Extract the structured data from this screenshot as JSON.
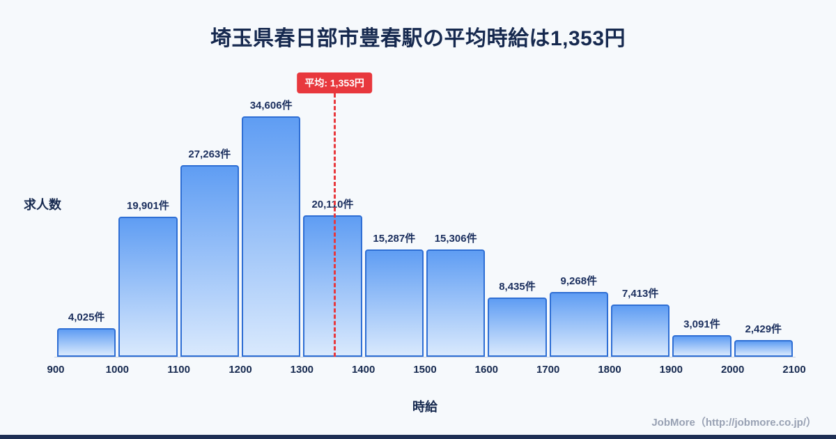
{
  "title": "埼玉県春日部市豊春駅の平均時給は1,353円",
  "chart_data": {
    "type": "bar",
    "title": "埼玉県春日部市豊春駅の平均時給は1,353円",
    "xlabel": "時給",
    "ylabel": "求人数",
    "unit_suffix": "件",
    "xlim": [
      900,
      2100
    ],
    "x_ticks": [
      900,
      1000,
      1100,
      1200,
      1300,
      1400,
      1500,
      1600,
      1700,
      1800,
      1900,
      2000,
      2100
    ],
    "grid": false,
    "legend_position": "none",
    "bins": [
      {
        "start": 900,
        "end": 1000,
        "count": 4025,
        "label": "4,025件"
      },
      {
        "start": 1000,
        "end": 1100,
        "count": 19901,
        "label": "19,901件"
      },
      {
        "start": 1100,
        "end": 1200,
        "count": 27263,
        "label": "27,263件"
      },
      {
        "start": 1200,
        "end": 1300,
        "count": 34606,
        "label": "34,606件"
      },
      {
        "start": 1300,
        "end": 1400,
        "count": 20110,
        "label": "20,110件"
      },
      {
        "start": 1400,
        "end": 1500,
        "count": 15287,
        "label": "15,287件"
      },
      {
        "start": 1500,
        "end": 1600,
        "count": 15306,
        "label": "15,306件"
      },
      {
        "start": 1600,
        "end": 1700,
        "count": 8435,
        "label": "8,435件"
      },
      {
        "start": 1700,
        "end": 1800,
        "count": 9268,
        "label": "9,268件"
      },
      {
        "start": 1800,
        "end": 1900,
        "count": 7413,
        "label": "7,413件"
      },
      {
        "start": 1900,
        "end": 2000,
        "count": 3091,
        "label": "3,091件"
      },
      {
        "start": 2000,
        "end": 2100,
        "count": 2429,
        "label": "2,429件"
      }
    ],
    "average": {
      "value": 1353,
      "label": "平均: 1,353円"
    },
    "colors": {
      "background": "#f6f9fc",
      "bar_gradient_top": "#5f9df3",
      "bar_gradient_bottom": "#d9e9fd",
      "bar_border": "#2e6ed4",
      "average_line": "#e8383d",
      "average_badge_text": "#ffffff",
      "text": "#16294f",
      "footer_text": "#98a1b3",
      "bottom_bar": "#1e2f54"
    }
  },
  "footer": {
    "credit": "JobMore（http://jobmore.co.jp/）"
  }
}
